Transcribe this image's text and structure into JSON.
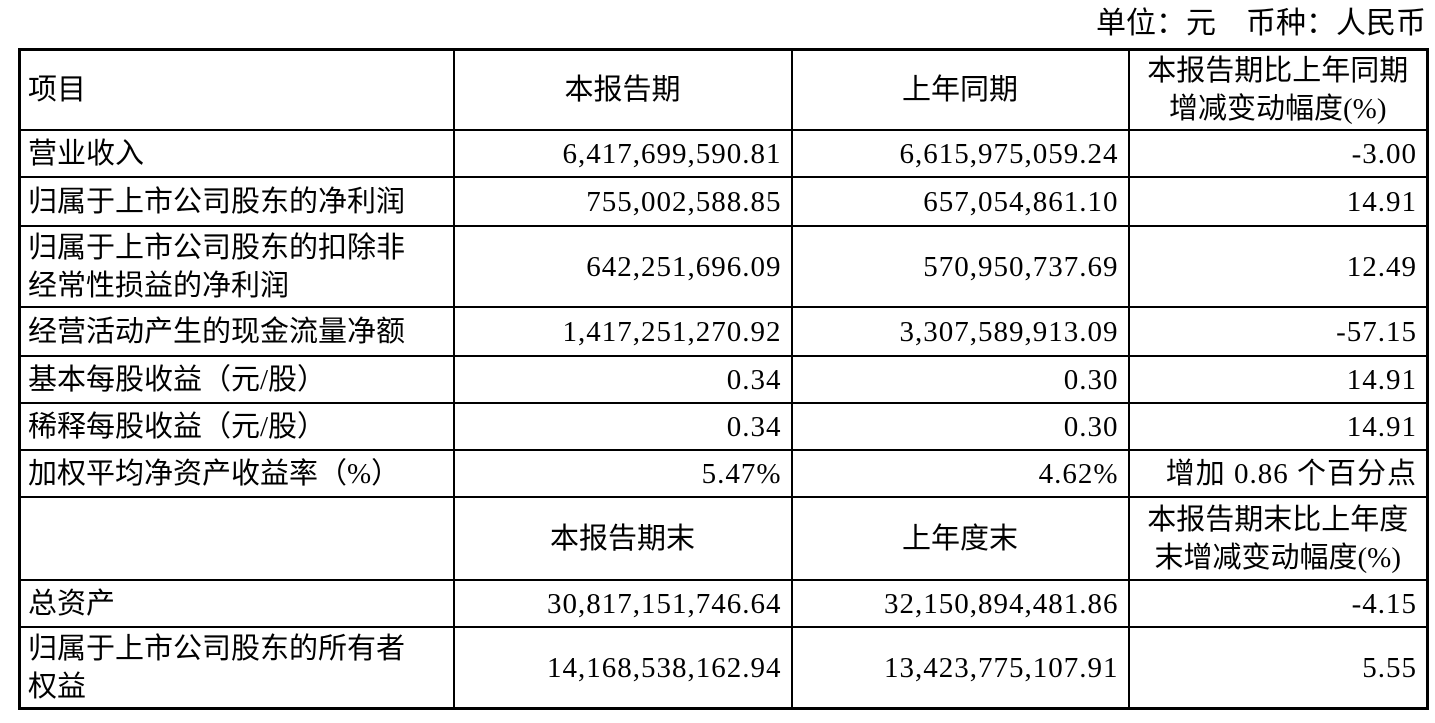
{
  "page": {
    "unit_label": "单位：元　币种：人民币"
  },
  "table": {
    "section1": {
      "header": {
        "item": "项目",
        "current": "本报告期",
        "prior": "上年同期",
        "change_lines": [
          "本报告期比上年同期",
          "增减变动幅度(%)"
        ]
      },
      "rows": [
        {
          "item_lines": [
            "营业收入"
          ],
          "current": "6,417,699,590.81",
          "prior": "6,615,975,059.24",
          "change": "-3.00"
        },
        {
          "item_lines": [
            "归属于上市公司股东的净利润"
          ],
          "current": "755,002,588.85",
          "prior": "657,054,861.10",
          "change": "14.91"
        },
        {
          "item_lines": [
            "归属于上市公司股东的扣除非",
            "经常性损益的净利润"
          ],
          "current": "642,251,696.09",
          "prior": "570,950,737.69",
          "change": "12.49"
        },
        {
          "item_lines": [
            "经营活动产生的现金流量净额"
          ],
          "current": "1,417,251,270.92",
          "prior": "3,307,589,913.09",
          "change": "-57.15"
        },
        {
          "item_lines": [
            "基本每股收益（元/股）"
          ],
          "current": "0.34",
          "prior": "0.30",
          "change": "14.91"
        },
        {
          "item_lines": [
            "稀释每股收益（元/股）"
          ],
          "current": "0.34",
          "prior": "0.30",
          "change": "14.91"
        },
        {
          "item_lines": [
            "加权平均净资产收益率（%）"
          ],
          "current": "5.47%",
          "prior": "4.62%",
          "change": "增加 0.86 个百分点"
        }
      ]
    },
    "section2": {
      "header": {
        "item": "",
        "current": "本报告期末",
        "prior": "上年度末",
        "change_lines": [
          "本报告期末比上年度",
          "末增减变动幅度(%)"
        ]
      },
      "rows": [
        {
          "item_lines": [
            "总资产"
          ],
          "current": "30,817,151,746.64",
          "prior": "32,150,894,481.86",
          "change": "-4.15"
        },
        {
          "item_lines": [
            "归属于上市公司股东的所有者",
            "权益"
          ],
          "current": "14,168,538,162.94",
          "prior": "13,423,775,107.91",
          "change": "5.55"
        }
      ]
    }
  }
}
